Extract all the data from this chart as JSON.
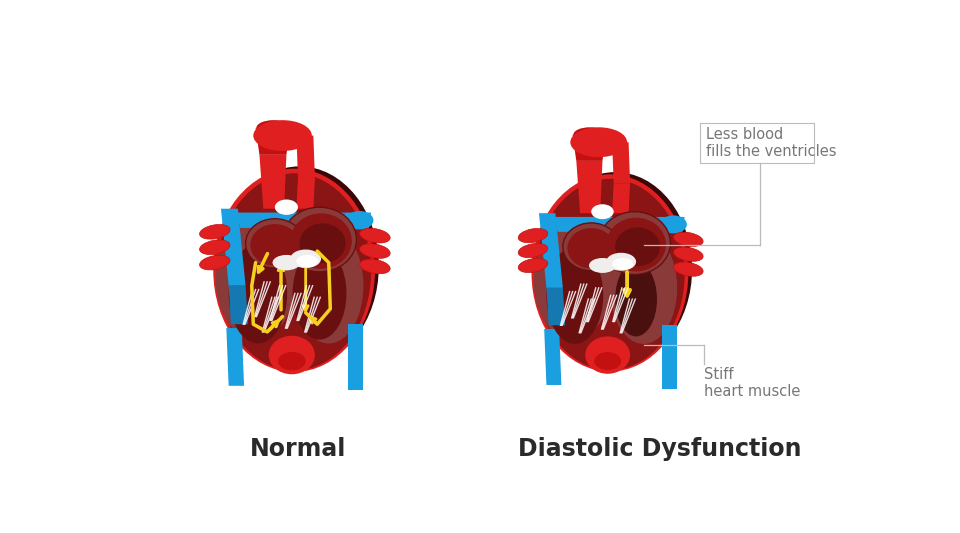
{
  "background_color": "#ffffff",
  "label_normal": "Normal",
  "label_dysfunction": "Diastolic Dysfunction",
  "label_fontsize": 17,
  "label_color": "#2a2a2a",
  "annotation_less_blood": "Less blood\nfills the ventricles",
  "annotation_stiff": "Stiff\nheart muscle",
  "annotation_color": "#777777",
  "annotation_fontsize": 10.5,
  "c_bright_red": "#E02020",
  "c_mid_red": "#C41010",
  "c_dark_red": "#8B1515",
  "c_deep_red": "#6A0F0F",
  "c_brown": "#8B3A3A",
  "c_dark_brown": "#5C1818",
  "c_inner_dark": "#4A0F0F",
  "c_blue": "#1A9FE0",
  "c_dark_blue": "#1578B0",
  "c_yellow": "#F5D020",
  "c_yellow2": "#E8C000",
  "c_white": "#FFFFFF",
  "c_offwhite": "#F0EEEC",
  "c_line": "#BBBBBB",
  "c_shadow": "#3A0808"
}
